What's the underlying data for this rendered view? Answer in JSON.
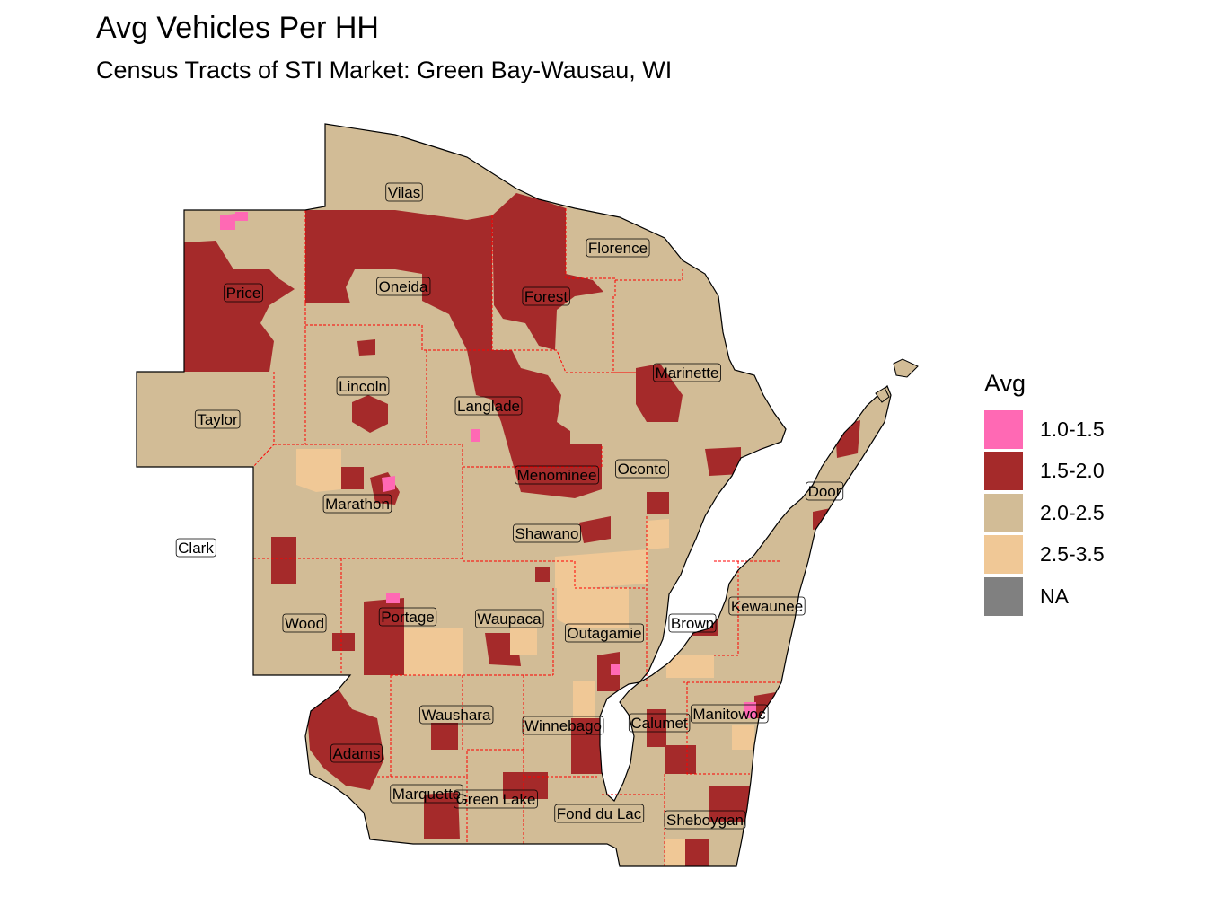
{
  "title": "Avg Vehicles Per HH",
  "subtitle": "Census Tracts of STI Market: Green Bay-Wausau, WI",
  "legend": {
    "title": "Avg",
    "items": [
      {
        "label": "1.0-1.5",
        "color": "#ff69b4"
      },
      {
        "label": "1.5-2.0",
        "color": "#a52a2a"
      },
      {
        "label": "2.0-2.5",
        "color": "#d2bc96"
      },
      {
        "label": "2.5-3.5",
        "color": "#f0c896"
      },
      {
        "label": "NA",
        "color": "#808080"
      }
    ]
  },
  "colors": {
    "background": "#ffffff",
    "county_border": "#ff0000",
    "outline": "#000000",
    "water": "#ffffff"
  },
  "counties": [
    "Vilas",
    "Florence",
    "Price",
    "Oneida",
    "Forest",
    "Marinette",
    "Lincoln",
    "Taylor",
    "Langlade",
    "Menominee",
    "Oconto",
    "Door",
    "Marathon",
    "Shawano",
    "Clark",
    "Kewaunee",
    "Wood",
    "Portage",
    "Waupaca",
    "Outagamie",
    "Brown",
    "Waushara",
    "Winnebago",
    "Calumet",
    "Manitowoc",
    "Adams",
    "Marquette",
    "Green Lake",
    "Fond du Lac",
    "Sheboygan"
  ]
}
